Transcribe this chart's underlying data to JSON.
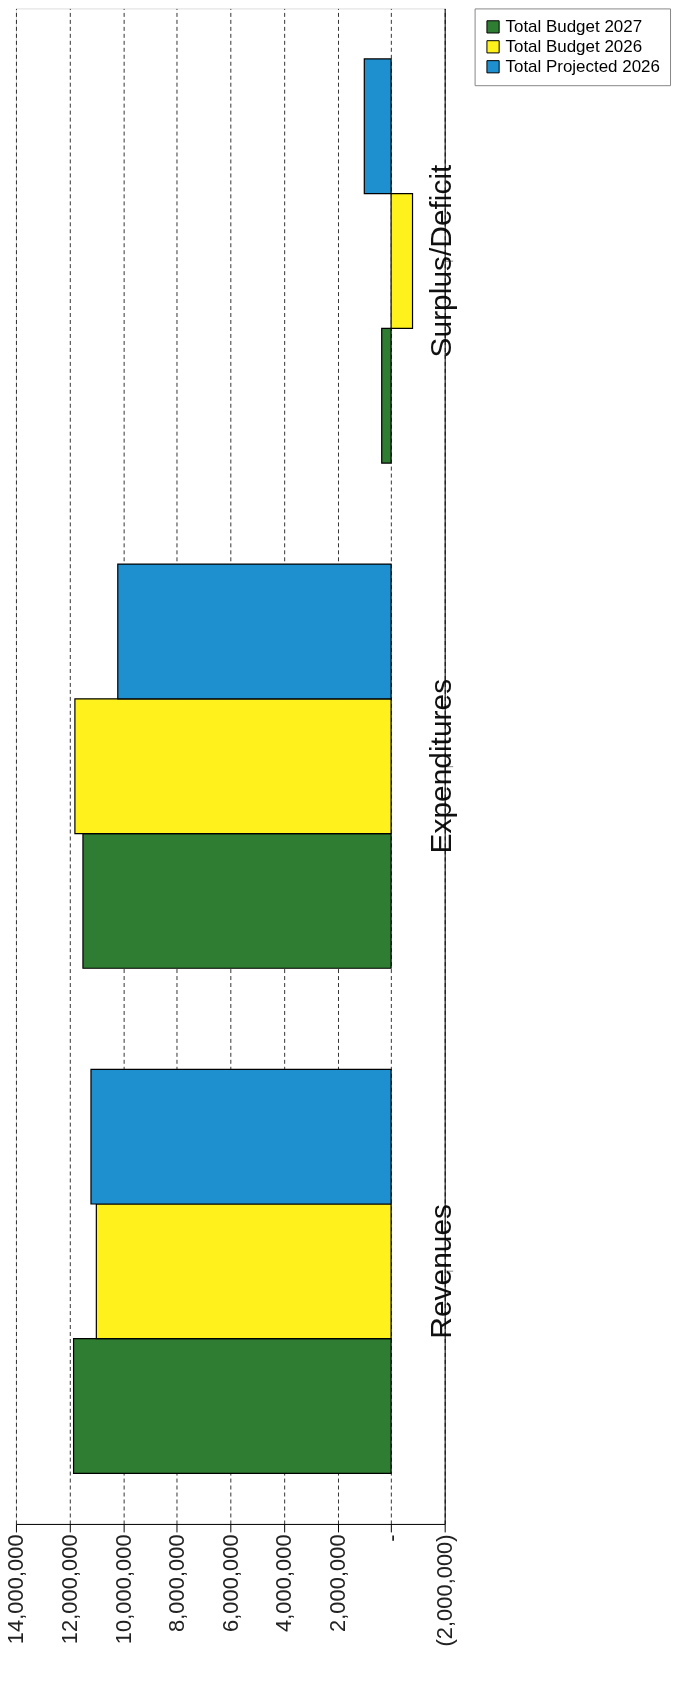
{
  "chart_data": {
    "type": "bar",
    "orientation": "horizontal",
    "categories": [
      "Surplus/Deficit",
      "Expenditures",
      "Revenues"
    ],
    "series": [
      {
        "name": "Total Budget 2027",
        "color": "#2e7d32",
        "values": [
          350000,
          11500000,
          11850000
        ]
      },
      {
        "name": "Total Budget 2026",
        "color": "#fff21c",
        "values": [
          -800000,
          11800000,
          11000000
        ]
      },
      {
        "name": "Total Projected 2026",
        "color": "#1e90d0",
        "values": [
          1000000,
          10200000,
          11200000
        ]
      }
    ],
    "xlim": [
      14000000,
      -2000000
    ],
    "xticks": [
      {
        "value": 14000000,
        "label": "14,000,000"
      },
      {
        "value": 12000000,
        "label": "12,000,000"
      },
      {
        "value": 10000000,
        "label": "10,000,000"
      },
      {
        "value": 8000000,
        "label": "8,000,000"
      },
      {
        "value": 6000000,
        "label": "6,000,000"
      },
      {
        "value": 4000000,
        "label": "4,000,000"
      },
      {
        "value": 2000000,
        "label": "2,000,000"
      },
      {
        "value": 0,
        "label": "-"
      },
      {
        "value": -2000000,
        "label": "(2,000,000)"
      }
    ],
    "grid": "x",
    "legend": "right"
  }
}
